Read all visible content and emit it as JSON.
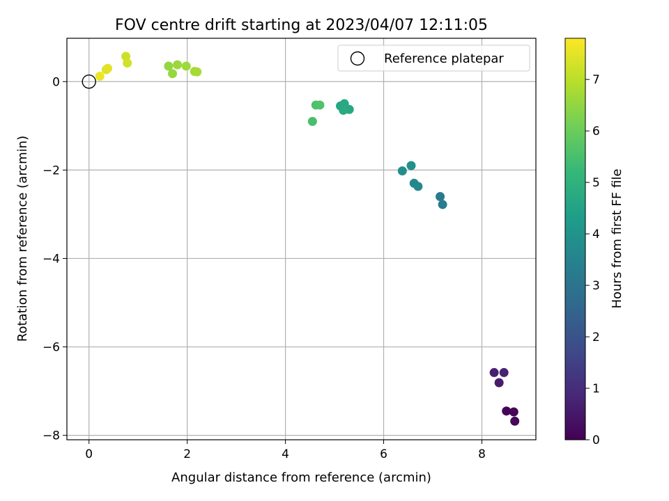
{
  "chart_data": {
    "type": "scatter",
    "title": "FOV centre drift starting at 2023/04/07 12:11:05",
    "xlabel": "Angular distance from reference (arcmin)",
    "ylabel": "Rotation from reference (arcmin)",
    "xlim": [
      -0.45,
      9.1
    ],
    "ylim": [
      -8.1,
      0.98
    ],
    "x_ticks": [
      0,
      2,
      4,
      6,
      8
    ],
    "y_ticks": [
      -8,
      -6,
      -4,
      -2,
      0
    ],
    "grid": true,
    "legend": {
      "placement": "top-right",
      "entries": [
        "Reference platepar"
      ]
    },
    "reference_point": {
      "x": 0,
      "y": 0
    },
    "colorbar": {
      "label": "Hours from first FF file",
      "range": [
        0,
        7.8
      ],
      "ticks": [
        0,
        1,
        2,
        3,
        4,
        5,
        6,
        7
      ],
      "colormap": "viridis"
    },
    "points": [
      {
        "x": 8.5,
        "y": -7.45,
        "c": 0.05
      },
      {
        "x": 8.65,
        "y": -7.47,
        "c": 0.1
      },
      {
        "x": 8.67,
        "y": -7.68,
        "c": 0.15
      },
      {
        "x": 8.35,
        "y": -6.81,
        "c": 0.6
      },
      {
        "x": 8.25,
        "y": -6.58,
        "c": 0.7
      },
      {
        "x": 8.45,
        "y": -6.58,
        "c": 0.75
      },
      {
        "x": 7.15,
        "y": -2.6,
        "c": 3.2
      },
      {
        "x": 7.2,
        "y": -2.78,
        "c": 3.25
      },
      {
        "x": 6.62,
        "y": -2.3,
        "c": 3.6
      },
      {
        "x": 6.7,
        "y": -2.37,
        "c": 3.65
      },
      {
        "x": 6.38,
        "y": -2.02,
        "c": 3.85
      },
      {
        "x": 6.56,
        "y": -1.9,
        "c": 3.9
      },
      {
        "x": 5.12,
        "y": -0.55,
        "c": 4.6
      },
      {
        "x": 5.3,
        "y": -0.63,
        "c": 4.65
      },
      {
        "x": 5.2,
        "y": -0.5,
        "c": 4.7
      },
      {
        "x": 5.18,
        "y": -0.65,
        "c": 4.75
      },
      {
        "x": 4.55,
        "y": -0.9,
        "c": 5.5
      },
      {
        "x": 4.62,
        "y": -0.53,
        "c": 5.55
      },
      {
        "x": 4.7,
        "y": -0.53,
        "c": 5.6
      },
      {
        "x": 1.62,
        "y": 0.35,
        "c": 6.5
      },
      {
        "x": 1.7,
        "y": 0.18,
        "c": 6.55
      },
      {
        "x": 1.8,
        "y": 0.38,
        "c": 6.6
      },
      {
        "x": 1.98,
        "y": 0.35,
        "c": 6.65
      },
      {
        "x": 2.15,
        "y": 0.23,
        "c": 6.7
      },
      {
        "x": 2.2,
        "y": 0.22,
        "c": 6.75
      },
      {
        "x": 0.75,
        "y": 0.57,
        "c": 7.2
      },
      {
        "x": 0.78,
        "y": 0.42,
        "c": 7.25
      },
      {
        "x": 0.35,
        "y": 0.27,
        "c": 7.4
      },
      {
        "x": 0.38,
        "y": 0.3,
        "c": 7.45
      },
      {
        "x": 0.22,
        "y": 0.12,
        "c": 7.6
      }
    ]
  }
}
